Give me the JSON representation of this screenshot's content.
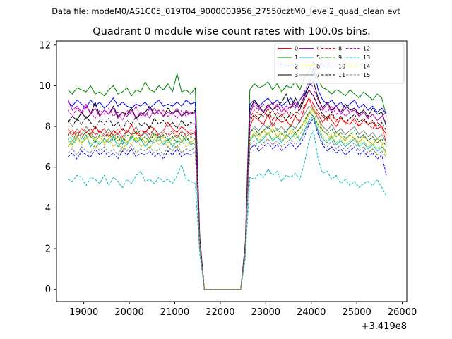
{
  "suptitle": "Data file: modeM0/AS1C05_019T04_9000003956_27550cztM0_level2_quad_clean.evt",
  "chart_data": {
    "type": "line",
    "title": "Quadrant 0 module wise count rates with 100.0s bins.",
    "xlabel": "",
    "ylabel": "",
    "x_offset_label": "+3.419e8",
    "xlim": [
      18400,
      26100
    ],
    "ylim": [
      -0.6,
      12.2
    ],
    "x_ticks": [
      19000,
      20000,
      21000,
      22000,
      23000,
      24000,
      25000,
      26000
    ],
    "x_tick_labels": [
      "19000",
      "20000",
      "21000",
      "22000",
      "23000",
      "24000",
      "25000",
      "26000"
    ],
    "y_ticks": [
      0,
      2,
      4,
      6,
      8,
      10,
      12
    ],
    "y_tick_labels": [
      "0",
      "2",
      "4",
      "6",
      "8",
      "10",
      "12"
    ],
    "grid": false,
    "legend_position": "top-right",
    "x_start": 18650,
    "x_step": 100,
    "series": [
      {
        "name": "0",
        "color": "#ff0000",
        "dash": "solid",
        "values": [
          7.6,
          7.8,
          7.5,
          7.9,
          7.7,
          7.6,
          8.0,
          7.7,
          7.9,
          7.5,
          7.8,
          7.6,
          7.9,
          7.7,
          8.1,
          7.6,
          7.8,
          7.7,
          8.0,
          7.9,
          7.6,
          7.8,
          8.2,
          7.9,
          7.7,
          8.0,
          7.8,
          7.6,
          7.7,
          2.4,
          0,
          0,
          0,
          0,
          0,
          0,
          0,
          0,
          0,
          2.0,
          8.0,
          8.5,
          8.3,
          8.1,
          8.6,
          8.0,
          8.4,
          8.2,
          8.3,
          8.0,
          8.5,
          8.2,
          8.9,
          9.4,
          8.8,
          8.6,
          8.2,
          8.5,
          8.3,
          8.0,
          8.4,
          8.2,
          8.1,
          8.4,
          8.0,
          8.3,
          8.1,
          8.2,
          7.9,
          8.0,
          7.6
        ]
      },
      {
        "name": "1",
        "color": "#008000",
        "dash": "solid",
        "values": [
          9.8,
          9.6,
          9.9,
          9.8,
          9.7,
          10.0,
          9.6,
          9.7,
          9.5,
          9.8,
          10.0,
          9.6,
          9.7,
          9.9,
          9.5,
          9.8,
          9.7,
          10.2,
          9.8,
          9.7,
          10.0,
          9.8,
          10.1,
          9.7,
          10.6,
          9.7,
          9.8,
          9.6,
          9.9,
          2.6,
          0,
          0,
          0,
          0,
          0,
          0,
          0,
          0,
          0,
          2.3,
          9.8,
          10.1,
          9.9,
          10.0,
          10.2,
          9.8,
          10.1,
          9.7,
          10.0,
          9.9,
          10.2,
          9.8,
          10.4,
          10.7,
          11.2,
          10.3,
          9.9,
          9.8,
          9.6,
          9.8,
          9.7,
          9.5,
          9.8,
          9.6,
          9.4,
          9.7,
          9.5,
          9.3,
          9.6,
          9.4,
          8.5
        ]
      },
      {
        "name": "2",
        "color": "#0000ff",
        "dash": "solid",
        "values": [
          9.2,
          9.0,
          9.3,
          9.1,
          8.9,
          9.3,
          9.0,
          9.2,
          8.9,
          9.1,
          9.4,
          9.0,
          9.2,
          9.0,
          8.9,
          9.1,
          9.0,
          9.2,
          8.9,
          9.1,
          9.3,
          9.0,
          9.1,
          9.0,
          9.2,
          9.0,
          9.3,
          9.1,
          9.2,
          2.5,
          0,
          0,
          0,
          0,
          0,
          0,
          0,
          0,
          0,
          2.2,
          9.1,
          9.3,
          9.0,
          9.2,
          9.4,
          9.1,
          9.3,
          9.0,
          9.2,
          9.4,
          9.0,
          9.3,
          9.6,
          10.0,
          10.9,
          9.8,
          9.3,
          9.1,
          9.3,
          9.0,
          9.2,
          8.9,
          9.1,
          9.3,
          8.9,
          9.1,
          8.8,
          9.0,
          8.7,
          8.9,
          8.6
        ]
      },
      {
        "name": "3",
        "color": "#000000",
        "dash": "solid",
        "values": [
          8.2,
          8.5,
          8.3,
          8.7,
          8.4,
          8.6,
          9.2,
          8.5,
          8.8,
          8.6,
          9.0,
          8.5,
          8.7,
          8.6,
          8.9,
          8.4,
          8.6,
          8.7,
          9.0,
          8.6,
          8.8,
          8.5,
          8.9,
          8.6,
          8.8,
          8.5,
          8.7,
          8.6,
          8.8,
          2.4,
          0,
          0,
          0,
          0,
          0,
          0,
          0,
          0,
          0,
          2.1,
          8.8,
          9.3,
          9.0,
          8.7,
          9.1,
          8.8,
          9.0,
          9.2,
          9.6,
          8.9,
          9.4,
          9.0,
          9.5,
          10.0,
          10.2,
          9.4,
          8.9,
          9.2,
          8.8,
          9.0,
          8.7,
          9.1,
          8.8,
          8.9,
          8.6,
          8.8,
          8.5,
          8.9,
          8.6,
          8.7,
          8.0
        ]
      },
      {
        "name": "4",
        "color": "#bf00bf",
        "dash": "solid",
        "values": [
          9.3,
          8.8,
          9.0,
          8.7,
          9.1,
          8.6,
          8.9,
          8.5,
          8.8,
          8.6,
          8.9,
          8.4,
          8.7,
          8.5,
          8.8,
          8.4,
          8.7,
          8.5,
          8.9,
          8.6,
          8.8,
          8.5,
          8.7,
          8.6,
          8.9,
          8.5,
          8.8,
          8.6,
          8.7,
          2.3,
          0,
          0,
          0,
          0,
          0,
          0,
          0,
          0,
          0,
          2.1,
          8.6,
          9.2,
          8.9,
          8.7,
          9.0,
          8.8,
          9.1,
          8.7,
          9.0,
          8.9,
          9.2,
          8.8,
          9.4,
          9.8,
          9.5,
          9.0,
          8.8,
          9.1,
          8.7,
          9.0,
          8.6,
          8.9,
          8.7,
          8.8,
          8.5,
          8.7,
          8.4,
          8.6,
          8.3,
          8.5,
          8.7
        ]
      },
      {
        "name": "5",
        "color": "#00bfbf",
        "dash": "solid",
        "values": [
          7.4,
          7.1,
          7.5,
          7.2,
          7.6,
          7.0,
          7.3,
          7.1,
          7.4,
          7.2,
          7.5,
          7.0,
          7.3,
          7.1,
          7.5,
          7.2,
          7.4,
          7.0,
          7.3,
          7.2,
          7.5,
          7.1,
          7.4,
          7.0,
          7.3,
          7.2,
          7.5,
          7.1,
          7.2,
          2.1,
          0,
          0,
          0,
          0,
          0,
          0,
          0,
          0,
          0,
          1.9,
          7.3,
          7.6,
          7.2,
          7.4,
          7.7,
          7.3,
          7.5,
          7.2,
          7.6,
          7.4,
          7.7,
          7.3,
          7.8,
          8.3,
          8.5,
          7.8,
          7.4,
          7.2,
          7.5,
          7.1,
          7.3,
          7.0,
          7.2,
          7.4,
          7.0,
          7.2,
          6.9,
          7.1,
          6.8,
          7.0,
          6.8
        ]
      },
      {
        "name": "6",
        "color": "#bfbf00",
        "dash": "solid",
        "values": [
          7.0,
          7.3,
          7.5,
          7.2,
          7.4,
          7.6,
          7.3,
          7.5,
          7.2,
          7.4,
          7.6,
          7.3,
          7.5,
          7.2,
          7.6,
          7.3,
          7.5,
          7.2,
          7.4,
          7.6,
          7.3,
          7.5,
          7.2,
          7.4,
          7.6,
          7.3,
          7.5,
          7.2,
          7.4,
          2.1,
          0,
          0,
          0,
          0,
          0,
          0,
          0,
          0,
          0,
          1.9,
          7.4,
          7.7,
          7.5,
          7.8,
          7.6,
          7.9,
          7.5,
          7.7,
          7.4,
          7.8,
          7.6,
          7.9,
          8.2,
          8.7,
          8.9,
          8.4,
          7.8,
          7.6,
          7.4,
          7.7,
          7.5,
          7.3,
          7.6,
          7.4,
          7.2,
          7.5,
          7.3,
          7.1,
          7.4,
          7.2,
          6.6
        ]
      },
      {
        "name": "7",
        "color": "#808080",
        "dash": "solid",
        "values": [
          7.8,
          7.5,
          7.9,
          7.6,
          8.0,
          7.7,
          7.4,
          7.8,
          7.6,
          7.9,
          7.5,
          7.7,
          7.3,
          7.8,
          7.6,
          8.0,
          7.5,
          7.7,
          7.4,
          7.9,
          7.6,
          7.8,
          7.5,
          7.7,
          7.4,
          7.8,
          7.5,
          7.7,
          7.6,
          2.2,
          0,
          0,
          0,
          0,
          0,
          0,
          0,
          0,
          0,
          2.0,
          7.7,
          8.0,
          7.8,
          8.1,
          7.9,
          8.2,
          7.8,
          8.0,
          7.7,
          8.1,
          7.9,
          8.3,
          8.6,
          9.0,
          8.8,
          8.4,
          8.0,
          7.8,
          8.1,
          7.7,
          7.9,
          7.6,
          7.8,
          8.0,
          7.6,
          7.8,
          7.5,
          7.7,
          7.4,
          7.6,
          7.2
        ]
      },
      {
        "name": "8",
        "color": "#ff0000",
        "dash": "dashed",
        "values": [
          7.9,
          7.6,
          7.8,
          7.5,
          7.7,
          7.9,
          7.6,
          7.8,
          7.5,
          7.7,
          7.6,
          7.9,
          7.5,
          7.8,
          7.6,
          7.7,
          7.5,
          7.8,
          7.6,
          7.9,
          7.5,
          7.7,
          7.6,
          7.8,
          7.5,
          7.7,
          7.6,
          7.8,
          7.7,
          2.3,
          0,
          0,
          0,
          0,
          0,
          0,
          0,
          0,
          0,
          2.0,
          8.4,
          8.8,
          8.6,
          8.5,
          8.9,
          8.3,
          8.7,
          8.5,
          8.8,
          8.4,
          8.7,
          8.6,
          9.0,
          9.4,
          9.1,
          8.7,
          8.5,
          8.3,
          8.6,
          8.2,
          8.5,
          8.1,
          8.4,
          8.2,
          8.0,
          8.3,
          8.1,
          7.9,
          8.2,
          8.0,
          7.2
        ]
      },
      {
        "name": "9",
        "color": "#008000",
        "dash": "dashed",
        "values": [
          7.6,
          7.3,
          7.7,
          7.4,
          7.8,
          7.5,
          7.2,
          7.6,
          7.4,
          7.7,
          7.3,
          7.5,
          7.1,
          7.6,
          7.4,
          7.8,
          7.3,
          7.5,
          7.2,
          7.7,
          7.4,
          7.6,
          7.3,
          7.5,
          7.2,
          7.6,
          7.3,
          7.5,
          7.4,
          2.2,
          0,
          0,
          0,
          0,
          0,
          0,
          0,
          0,
          0,
          1.9,
          7.7,
          7.9,
          7.6,
          7.8,
          8.0,
          7.7,
          7.9,
          7.6,
          7.8,
          8.0,
          7.7,
          7.9,
          8.3,
          8.7,
          8.5,
          8.1,
          7.8,
          7.6,
          7.9,
          7.5,
          7.7,
          7.4,
          7.6,
          7.8,
          7.4,
          7.6,
          7.3,
          7.5,
          7.2,
          7.4,
          7.0
        ]
      },
      {
        "name": "10",
        "color": "#0000ff",
        "dash": "dashed",
        "values": [
          6.5,
          6.7,
          6.4,
          6.8,
          6.6,
          6.5,
          6.9,
          6.6,
          6.8,
          6.5,
          6.7,
          6.4,
          6.8,
          6.6,
          6.9,
          6.5,
          6.7,
          6.6,
          6.8,
          6.5,
          6.7,
          6.4,
          6.8,
          6.6,
          6.9,
          6.5,
          6.7,
          6.6,
          6.8,
          2.0,
          0,
          0,
          0,
          0,
          0,
          0,
          0,
          0,
          0,
          1.8,
          6.9,
          7.1,
          6.8,
          7.0,
          7.2,
          6.9,
          7.1,
          6.8,
          7.0,
          7.2,
          6.9,
          7.1,
          7.5,
          8.1,
          8.4,
          7.6,
          7.1,
          6.8,
          7.0,
          6.7,
          6.9,
          6.6,
          6.8,
          7.0,
          6.6,
          6.8,
          6.5,
          6.7,
          6.4,
          6.6,
          5.6
        ]
      },
      {
        "name": "11",
        "color": "#000000",
        "dash": "dashed",
        "values": [
          8.3,
          8.0,
          8.4,
          8.1,
          8.5,
          8.2,
          7.9,
          8.3,
          8.1,
          8.4,
          8.0,
          8.2,
          7.8,
          8.3,
          8.1,
          8.5,
          8.0,
          8.2,
          7.9,
          8.4,
          8.1,
          8.3,
          8.0,
          8.2,
          7.9,
          8.3,
          8.0,
          8.2,
          8.1,
          2.3,
          0,
          0,
          0,
          0,
          0,
          0,
          0,
          0,
          0,
          2.1,
          8.3,
          8.6,
          8.4,
          8.7,
          8.5,
          8.8,
          8.4,
          8.6,
          8.3,
          8.7,
          8.5,
          8.9,
          9.3,
          9.8,
          9.5,
          9.0,
          8.6,
          8.4,
          8.7,
          8.3,
          8.5,
          8.2,
          8.4,
          8.6,
          8.2,
          8.4,
          8.1,
          8.3,
          8.0,
          8.2,
          7.8
        ]
      },
      {
        "name": "12",
        "color": "#bf00bf",
        "dash": "dashed",
        "values": [
          8.8,
          8.5,
          8.9,
          8.6,
          9.0,
          8.7,
          8.4,
          8.8,
          8.6,
          8.9,
          8.5,
          8.7,
          8.3,
          8.8,
          8.6,
          9.0,
          8.5,
          8.7,
          8.4,
          8.9,
          8.6,
          8.8,
          8.5,
          8.7,
          8.4,
          8.8,
          8.5,
          8.7,
          8.6,
          2.4,
          0,
          0,
          0,
          0,
          0,
          0,
          0,
          0,
          0,
          2.1,
          8.7,
          9.0,
          8.8,
          9.1,
          8.9,
          9.2,
          8.8,
          9.0,
          8.7,
          9.1,
          8.9,
          9.3,
          9.7,
          10.2,
          9.9,
          9.3,
          8.9,
          8.7,
          9.0,
          8.6,
          8.8,
          8.5,
          8.7,
          8.9,
          8.5,
          8.7,
          8.4,
          8.6,
          8.3,
          8.5,
          8.2
        ]
      },
      {
        "name": "13",
        "color": "#00bfbf",
        "dash": "dashed",
        "values": [
          5.4,
          5.3,
          5.6,
          5.5,
          5.1,
          5.5,
          5.4,
          5.2,
          5.6,
          5.1,
          5.5,
          5.3,
          5.0,
          5.4,
          5.2,
          5.6,
          5.8,
          5.3,
          5.4,
          5.2,
          5.5,
          5.3,
          5.4,
          5.2,
          5.6,
          6.1,
          5.4,
          5.3,
          5.2,
          1.7,
          0,
          0,
          0,
          0,
          0,
          0,
          0,
          0,
          0,
          1.5,
          5.5,
          5.4,
          5.7,
          5.5,
          5.9,
          5.6,
          5.8,
          5.3,
          5.6,
          5.5,
          5.7,
          5.4,
          6.2,
          7.3,
          7.8,
          6.4,
          5.7,
          5.8,
          5.4,
          5.6,
          5.2,
          5.4,
          5.1,
          5.3,
          5.0,
          5.2,
          5.3,
          5.1,
          5.4,
          5.0,
          4.6
        ]
      },
      {
        "name": "14",
        "color": "#bfbf00",
        "dash": "dashed",
        "values": [
          7.3,
          7.0,
          7.4,
          7.1,
          7.5,
          7.2,
          6.9,
          7.3,
          7.1,
          7.4,
          7.0,
          7.2,
          6.8,
          7.3,
          7.1,
          7.5,
          7.0,
          7.2,
          6.9,
          7.4,
          7.1,
          7.3,
          7.0,
          7.2,
          6.9,
          7.3,
          7.0,
          7.2,
          7.1,
          2.1,
          0,
          0,
          0,
          0,
          0,
          0,
          0,
          0,
          0,
          1.9,
          7.4,
          7.6,
          7.3,
          7.5,
          7.7,
          7.4,
          7.6,
          7.3,
          7.5,
          7.7,
          7.4,
          7.6,
          8.0,
          8.6,
          8.8,
          8.0,
          7.5,
          7.3,
          7.6,
          7.2,
          7.4,
          7.1,
          7.3,
          7.5,
          7.1,
          7.3,
          7.0,
          7.2,
          6.9,
          7.1,
          6.7
        ]
      },
      {
        "name": "15",
        "color": "#808080",
        "dash": "dashed",
        "values": [
          6.7,
          6.9,
          6.6,
          7.0,
          6.8,
          6.7,
          7.1,
          6.8,
          7.0,
          6.7,
          6.9,
          6.6,
          7.0,
          6.8,
          7.1,
          6.7,
          6.9,
          6.8,
          7.0,
          6.7,
          6.9,
          6.6,
          7.0,
          6.8,
          7.1,
          6.7,
          6.9,
          6.8,
          7.0,
          2.0,
          0,
          0,
          0,
          0,
          0,
          0,
          0,
          0,
          0,
          1.8,
          7.1,
          7.3,
          7.0,
          7.2,
          7.4,
          7.1,
          7.3,
          7.0,
          7.2,
          7.4,
          7.1,
          7.3,
          7.7,
          8.2,
          8.4,
          7.7,
          7.2,
          7.0,
          7.3,
          6.9,
          7.1,
          6.8,
          7.0,
          7.2,
          6.8,
          7.0,
          6.7,
          6.9,
          6.6,
          6.8,
          6.5
        ]
      }
    ]
  }
}
